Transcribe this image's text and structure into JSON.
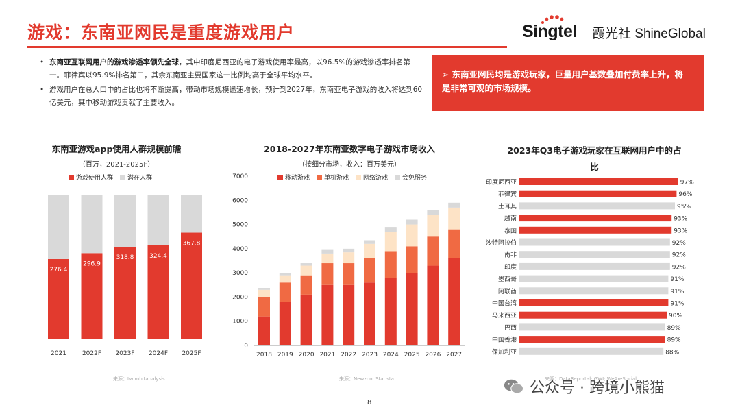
{
  "page": {
    "title": "游戏：东南亚网民是重度游戏用户",
    "logo_brand": "Singtel",
    "logo_partner": "霞光社 ShineGlobal",
    "page_number": "8",
    "watermark": "公众号 · 跨境小熊猫",
    "bullets": [
      {
        "bold": "东南亚互联网用户的游戏渗透率领先全球",
        "text": "，其中印度尼西亚的电子游戏使用率最高，以96.5%的游戏渗透率排名第一。菲律宾以95.9%排名第二，其余东南亚主要国家这一比例均高于全球平均水平。"
      },
      {
        "bold": "",
        "text": "游戏用户在总人口中的占比也将不断提高，带动市场规模迅速增长，预计到2027年，东南亚电子游戏的收入将达到60亿美元，其中移动游戏贡献了主要收入。"
      }
    ],
    "callout_arrow": "➢",
    "callout": "东南亚网民均是游戏玩家，巨量用户基数叠加付费率上升，将是非常可观的市场规模。"
  },
  "colors": {
    "red": "#e23a2e",
    "orange": "#f06a43",
    "cream": "#fde3c6",
    "gray": "#d9d9d9",
    "text": "#333333"
  },
  "chart_data": [
    {
      "type": "bar",
      "stacked": true,
      "title": "东南亚游戏app使用人群规模前瞻",
      "subtitle": "（百万，2021-2025F）",
      "categories": [
        "2021",
        "2022F",
        "2023F",
        "2024F",
        "2025F"
      ],
      "series": [
        {
          "name": "游戏使用人群",
          "values": [
            276.4,
            296.9,
            318.8,
            324.4,
            367.8
          ],
          "color": "#e23a2e"
        },
        {
          "name": "潜在人群",
          "values": [
            223.6,
            203.1,
            181.2,
            175.6,
            132.2
          ],
          "color": "#d9d9d9"
        }
      ],
      "total": 500,
      "source": "来源：twimbitanalysis"
    },
    {
      "type": "bar",
      "stacked": true,
      "title": "2018-2027年东南亚数字电子游戏市场收入",
      "subtitle": "（按细分市场，收入：百万美元）",
      "categories": [
        "2018",
        "2019",
        "2020",
        "2021",
        "2022",
        "2023",
        "2024",
        "2025",
        "2026",
        "2027"
      ],
      "series": [
        {
          "name": "移动游戏",
          "values": [
            1200,
            1800,
            2100,
            2500,
            2500,
            2600,
            2800,
            3000,
            3300,
            3600
          ],
          "color": "#e23a2e"
        },
        {
          "name": "单机游戏",
          "values": [
            800,
            800,
            800,
            900,
            900,
            1000,
            1100,
            1100,
            1200,
            1200
          ],
          "color": "#f06a43"
        },
        {
          "name": "网络游戏",
          "values": [
            300,
            300,
            400,
            400,
            450,
            600,
            800,
            900,
            900,
            900
          ],
          "color": "#fde3c6"
        },
        {
          "name": "会免服务",
          "values": [
            80,
            100,
            100,
            150,
            150,
            150,
            200,
            200,
            200,
            200
          ],
          "color": "#d9d9d9"
        }
      ],
      "ylim": [
        0,
        7000
      ],
      "yticks": [
        "0",
        "1000",
        "2000",
        "3000",
        "4000",
        "5000",
        "6000",
        "7000"
      ],
      "source": "来源：Newzoo; Statista"
    },
    {
      "type": "bar",
      "orientation": "horizontal",
      "title": "2023年Q3电子游戏玩家在互联网用户中的占比",
      "title_line1": "2023年Q3电子游戏玩家在互联网用户中的占",
      "title_line2": "比",
      "categories": [
        "印度尼西亚",
        "菲律宾",
        "土耳其",
        "越南",
        "泰国",
        "沙特阿拉伯",
        "南非",
        "印度",
        "墨西哥",
        "阿联酋",
        "中国台湾",
        "马来西亚",
        "巴西",
        "中国香港",
        "保加利亚"
      ],
      "values": [
        97,
        96,
        95,
        93,
        93,
        92,
        92,
        92,
        91,
        91,
        91,
        90,
        89,
        89,
        88
      ],
      "labels": [
        "97%",
        "96%",
        "95%",
        "93%",
        "93%",
        "92%",
        "92%",
        "92%",
        "91%",
        "91%",
        "91%",
        "90%",
        "89%",
        "89%",
        "88%"
      ],
      "highlight": [
        true,
        true,
        false,
        true,
        true,
        false,
        false,
        false,
        false,
        false,
        true,
        true,
        false,
        true,
        false
      ],
      "xlim": [
        0,
        100
      ],
      "source": "来源：DataReportal; GWI; WeAreSocial"
    }
  ]
}
